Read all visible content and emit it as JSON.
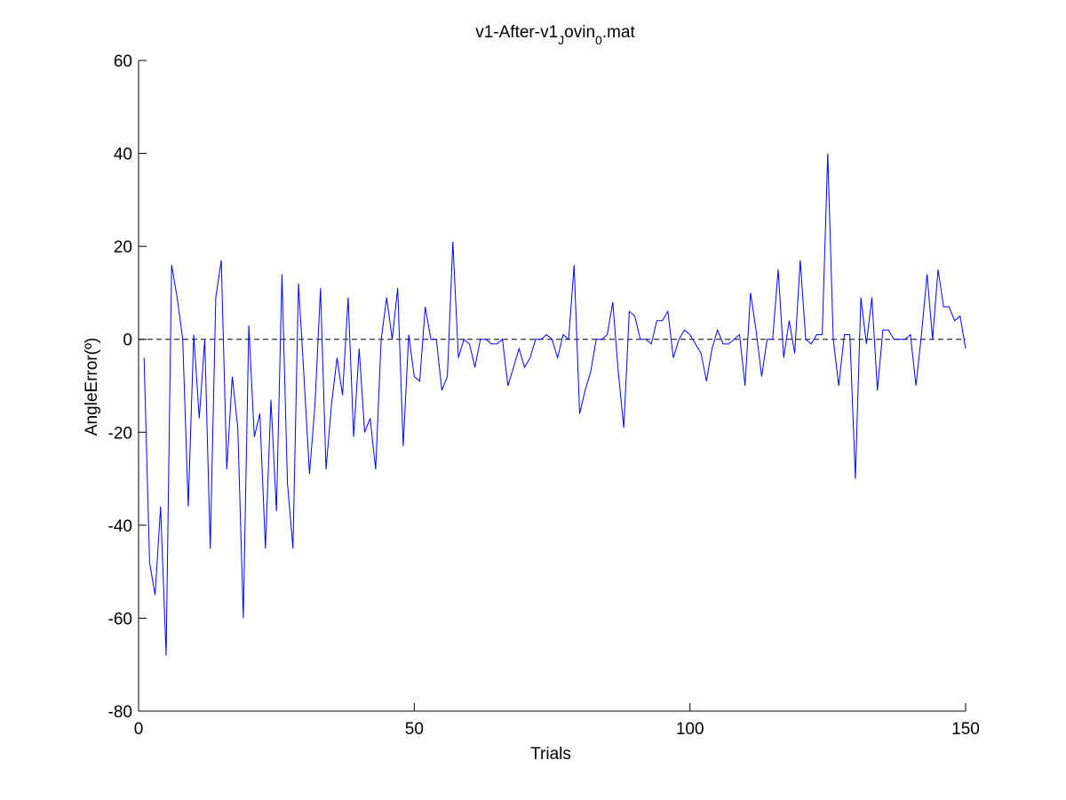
{
  "figure": {
    "title_main": "v1-After-v1",
    "title_sub1": "J",
    "title_mid": "ovin",
    "title_sub2": "0",
    "title_end": ".mat"
  },
  "chart_data": {
    "type": "line",
    "title": "v1-After-v1_Jovin_0.mat",
    "xlabel": "Trials",
    "ylabel": "AngleError(º)",
    "xlim": [
      0,
      150
    ],
    "ylim": [
      -80,
      60
    ],
    "xticks": [
      0,
      50,
      100,
      150
    ],
    "yticks": [
      -80,
      -60,
      -40,
      -20,
      0,
      20,
      40,
      60
    ],
    "grid": false,
    "legend": "none",
    "reference_line": {
      "y": 0,
      "style": "dashed",
      "color": "#000000"
    },
    "series": [
      {
        "color": "#0000ff",
        "x": [
          1,
          2,
          3,
          4,
          5,
          6,
          7,
          8,
          9,
          10,
          11,
          12,
          13,
          14,
          15,
          16,
          17,
          18,
          19,
          20,
          21,
          22,
          23,
          24,
          25,
          26,
          27,
          28,
          29,
          30,
          31,
          32,
          33,
          34,
          35,
          36,
          37,
          38,
          39,
          40,
          41,
          42,
          43,
          44,
          45,
          46,
          47,
          48,
          49,
          50,
          51,
          52,
          53,
          54,
          55,
          56,
          57,
          58,
          59,
          60,
          61,
          62,
          63,
          64,
          65,
          66,
          67,
          68,
          69,
          70,
          71,
          72,
          73,
          74,
          75,
          76,
          77,
          78,
          79,
          80,
          81,
          82,
          83,
          84,
          85,
          86,
          87,
          88,
          89,
          90,
          91,
          92,
          93,
          94,
          95,
          96,
          97,
          98,
          99,
          100,
          101,
          102,
          103,
          104,
          105,
          106,
          107,
          108,
          109,
          110,
          111,
          112,
          113,
          114,
          115,
          116,
          117,
          118,
          119,
          120,
          121,
          122,
          123,
          124,
          125,
          126,
          127,
          128,
          129,
          130,
          131,
          132,
          133,
          134,
          135,
          136,
          137,
          138,
          139,
          140,
          141,
          142,
          143,
          144,
          145,
          146,
          147,
          148,
          149,
          150
        ],
        "y": [
          -4,
          -48,
          -55,
          -36,
          -68,
          16,
          9,
          0,
          -36,
          1,
          -17,
          0,
          -45,
          9,
          17,
          -28,
          -8,
          -19,
          -60,
          3,
          -21,
          -16,
          -45,
          -13,
          -37,
          14,
          -31,
          -45,
          12,
          -8,
          -29,
          -14,
          11,
          -28,
          -14,
          -4,
          -12,
          9,
          -21,
          -2,
          -20,
          -17,
          -28,
          0,
          9,
          0,
          11,
          -23,
          1,
          -8,
          -9,
          7,
          0,
          0,
          -11,
          -8,
          21,
          -4,
          0,
          -1,
          -6,
          0,
          0,
          -1,
          -1,
          0,
          -10,
          -6,
          -2,
          -6,
          -4,
          0,
          0,
          1,
          0,
          -4,
          1,
          0,
          16,
          -16,
          -11,
          -7,
          0,
          0,
          1,
          8,
          -7,
          -19,
          6,
          5,
          0,
          0,
          -1,
          4,
          4,
          6,
          -4,
          0,
          2,
          1,
          -1,
          -3,
          -9,
          -2,
          2,
          -1,
          -1,
          0,
          1,
          -10,
          10,
          2,
          -8,
          0,
          0,
          15,
          -4,
          4,
          -3,
          17,
          0,
          -1,
          1,
          1,
          40,
          0,
          -10,
          1,
          1,
          -30,
          9,
          -1,
          9,
          -11,
          2,
          2,
          0,
          0,
          0,
          1,
          -10,
          1,
          14,
          0,
          15,
          7,
          7,
          4,
          5,
          -2
        ]
      }
    ]
  }
}
